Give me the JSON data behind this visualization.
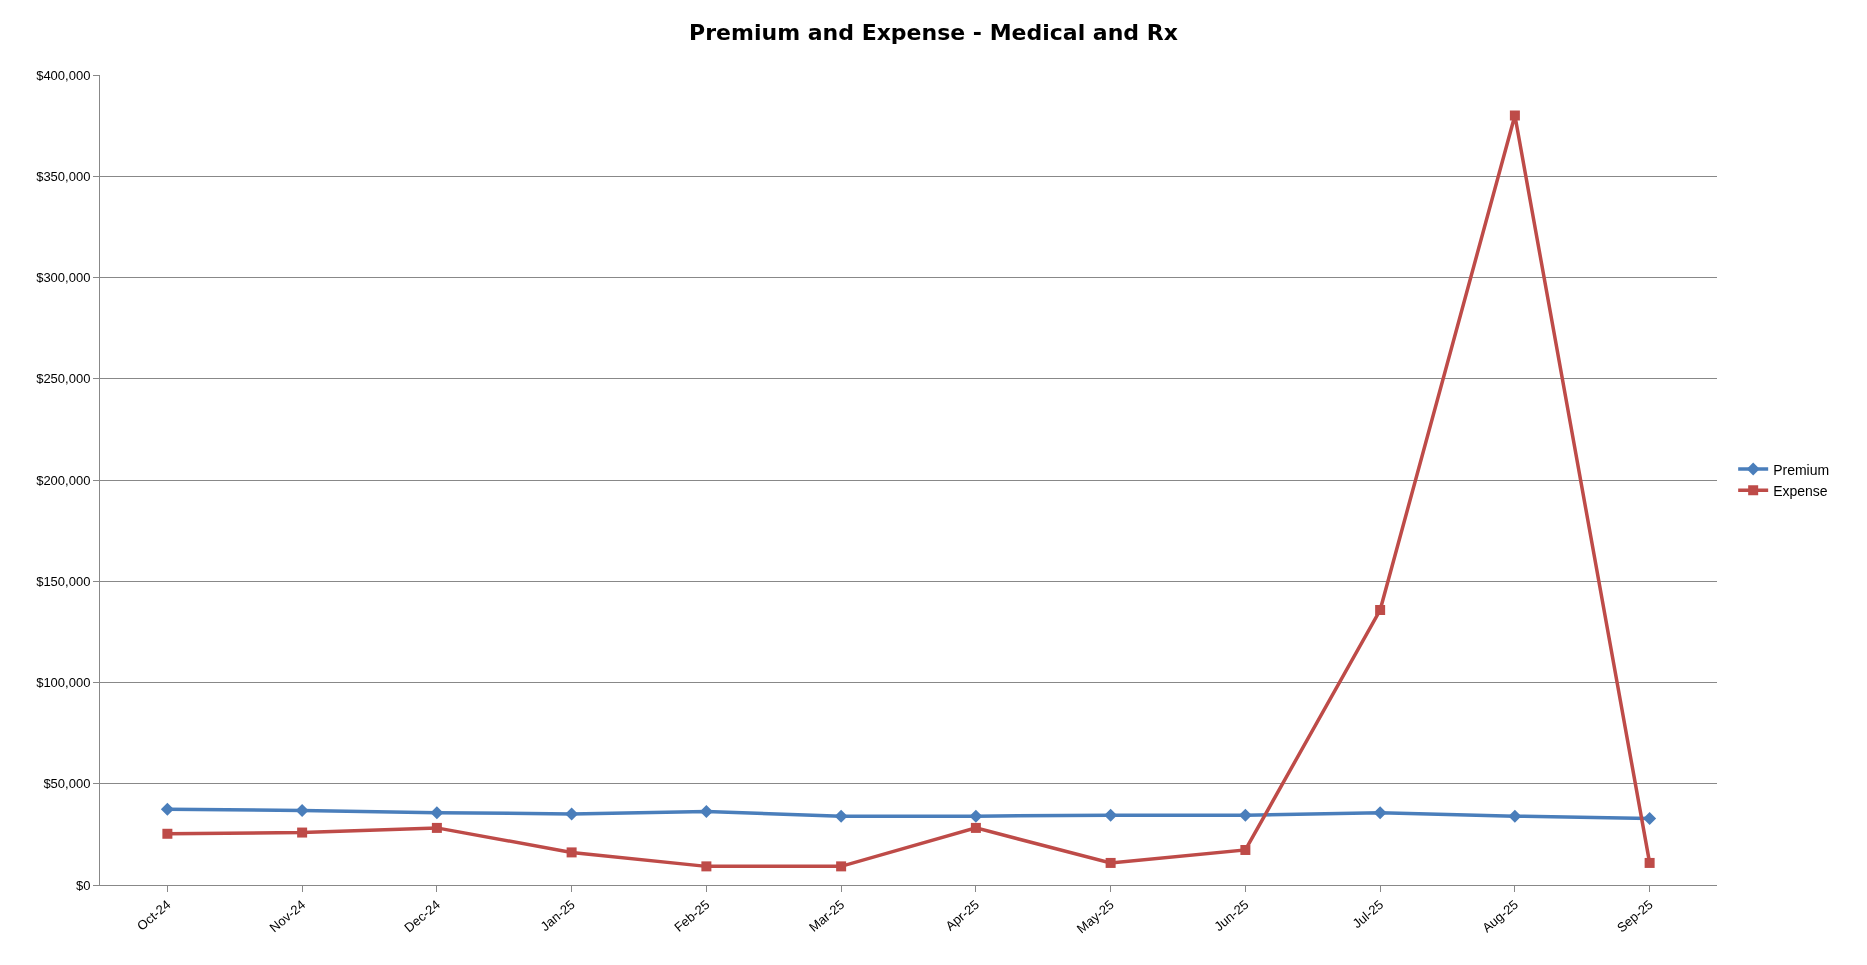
{
  "chart_data": {
    "type": "line",
    "title": "Premium and Expense - Medical and Rx",
    "categories": [
      "Oct-24",
      "Nov-24",
      "Dec-24",
      "Jan-25",
      "Feb-25",
      "Mar-25",
      "Apr-25",
      "May-25",
      "Jun-25",
      "Jul-25",
      "Aug-25",
      "Sep-25"
    ],
    "series": [
      {
        "name": "Premium",
        "color": "#4a7ebb",
        "marker": "diamond",
        "values": [
          37400,
          36800,
          35700,
          35100,
          36300,
          34000,
          34000,
          34500,
          34500,
          35700,
          34000,
          32800
        ]
      },
      {
        "name": "Expense",
        "color": "#be4b48",
        "marker": "square",
        "values": [
          25300,
          25900,
          28200,
          16100,
          9200,
          9200,
          28200,
          10900,
          17300,
          135800,
          380000,
          10900
        ]
      }
    ],
    "ylim": [
      0,
      400000
    ],
    "yticks": [
      {
        "value": 0,
        "label": "$0"
      },
      {
        "value": 50000,
        "label": "$50,000"
      },
      {
        "value": 100000,
        "label": "$100,000"
      },
      {
        "value": 150000,
        "label": "$150,000"
      },
      {
        "value": 200000,
        "label": "$200,000"
      },
      {
        "value": 250000,
        "label": "$250,000"
      },
      {
        "value": 300000,
        "label": "$300,000"
      },
      {
        "value": 350000,
        "label": "$350,000"
      },
      {
        "value": 400000,
        "label": "$400,000"
      }
    ],
    "grid": "y",
    "legend": "right",
    "line_style": "solid"
  }
}
